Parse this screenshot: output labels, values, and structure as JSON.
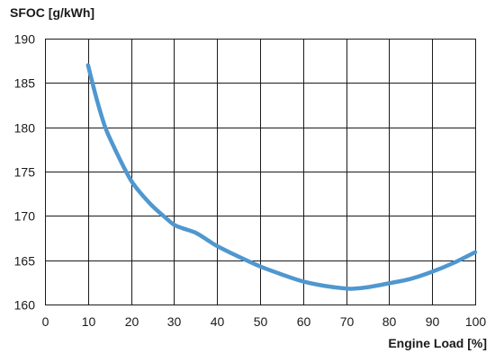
{
  "chart_data": {
    "type": "line",
    "title": "",
    "ylabel": "SFOC [g/kWh]",
    "xlabel": "Engine Load [%]",
    "xlim": [
      0,
      100
    ],
    "ylim": [
      160,
      190
    ],
    "xticks": [
      0,
      10,
      20,
      30,
      40,
      50,
      60,
      70,
      80,
      90,
      100
    ],
    "yticks": [
      160,
      165,
      170,
      175,
      180,
      185,
      190
    ],
    "grid": true,
    "series": [
      {
        "color": "#4f97cf",
        "x": [
          10,
          12,
          14,
          16,
          18,
          20,
          22,
          25,
          28,
          30,
          32,
          35,
          38,
          40,
          45,
          50,
          55,
          60,
          65,
          70,
          72,
          75,
          80,
          85,
          90,
          95,
          100
        ],
        "y": [
          187.0,
          183.2,
          180.0,
          177.8,
          175.8,
          174.0,
          172.7,
          171.1,
          169.8,
          169.0,
          168.6,
          168.1,
          167.2,
          166.6,
          165.4,
          164.3,
          163.4,
          162.6,
          162.1,
          161.8,
          161.8,
          161.95,
          162.4,
          162.9,
          163.7,
          164.7,
          165.9
        ]
      }
    ]
  }
}
